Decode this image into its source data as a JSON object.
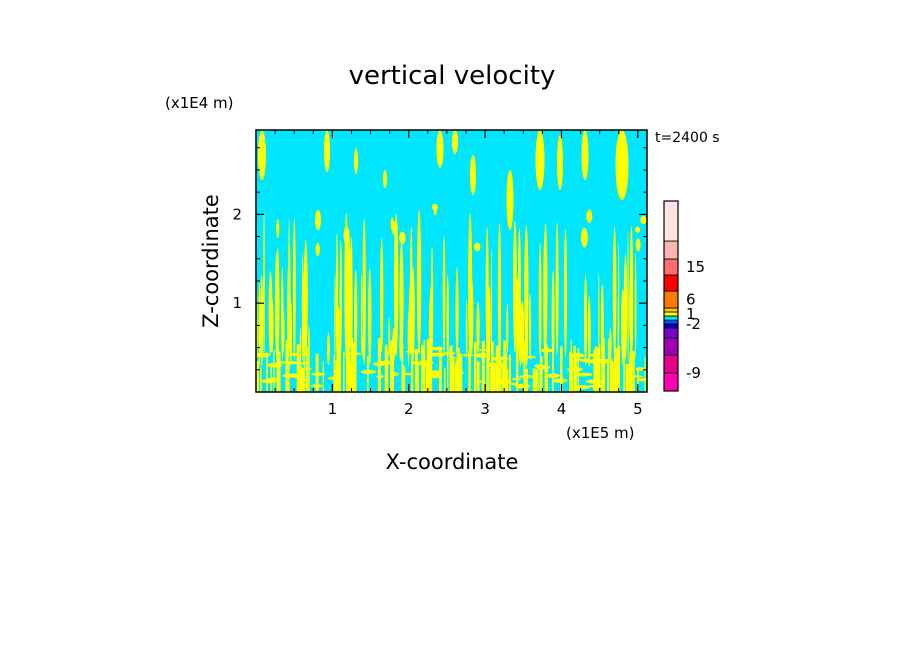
{
  "chart_data": {
    "type": "heatmap",
    "title": "vertical velocity",
    "xlabel": "X-coordinate",
    "ylabel": "Z-coordinate",
    "x_unit": "(x1E5 m)",
    "y_unit": "(x1E4 m)",
    "time_label": "t=2400 s",
    "xlim": [
      0,
      5.12
    ],
    "ylim": [
      0,
      2.95
    ],
    "x_ticks": [
      1,
      2,
      3,
      4,
      5
    ],
    "y_ticks": [
      1,
      2
    ],
    "x_tick_labels": [
      "1",
      "2",
      "3",
      "4",
      "5"
    ],
    "y_tick_labels": [
      "1",
      "2"
    ],
    "background_level_color": "#00e6ff",
    "feature_color": "#ffff00",
    "colorbar": {
      "colors": [
        "#ff00b4",
        "#e6008c",
        "#a000b4",
        "#7800c8",
        "#0000c8",
        "#0050ff",
        "#00e6ff",
        "#ffff00",
        "#ffc800",
        "#ff7800",
        "#ff0000",
        "#ff6e6e",
        "#ffb4b4",
        "#ffe6e6"
      ],
      "labels": [
        {
          "text": "-9",
          "level_index": 1
        },
        {
          "text": "-2",
          "level_index": 5
        },
        {
          "text": "1",
          "level_index": 7.5
        },
        {
          "text": "6",
          "level_index": 9.5
        },
        {
          "text": "15",
          "level_index": 11.5
        }
      ]
    }
  }
}
